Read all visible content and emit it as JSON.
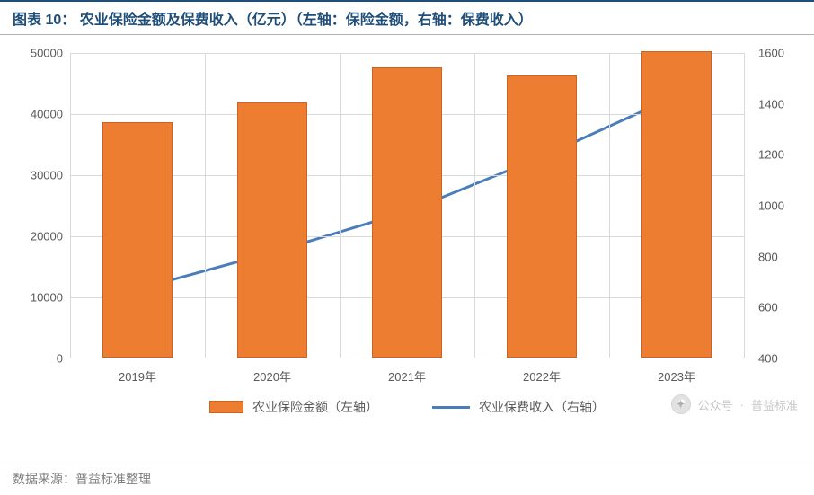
{
  "title": "图表 10：   农业保险金额及保费收入（亿元）（左轴：保险金额，右轴：保费收入）",
  "footer": "数据来源：普益标准整理",
  "watermark": {
    "prefix": "公众号",
    "name": "普益标准"
  },
  "chart": {
    "type": "bar+line",
    "background_color": "#ffffff",
    "grid_color": "#d9d9d9",
    "axis_color": "#bfbfbf",
    "tick_color": "#595959",
    "tick_fontsize": 13,
    "title_color": "#1f4e79",
    "title_fontsize": 16,
    "categories": [
      "2019年",
      "2020年",
      "2021年",
      "2022年",
      "2023年"
    ],
    "bars": {
      "label": "农业保险金额（左轴）",
      "values": [
        38500,
        41800,
        47500,
        46200,
        50200
      ],
      "color": "#ed7d31",
      "border_color": "#c96424",
      "bar_width_frac": 0.52
    },
    "line": {
      "label": "农业保费收入（右轴）",
      "values": [
        670,
        815,
        975,
        1190,
        1430
      ],
      "color": "#4a7ebb",
      "line_width": 3
    },
    "y_left": {
      "min": 0,
      "max": 50000,
      "step": 10000
    },
    "y_right": {
      "min": 400,
      "max": 1600,
      "step": 200
    }
  }
}
